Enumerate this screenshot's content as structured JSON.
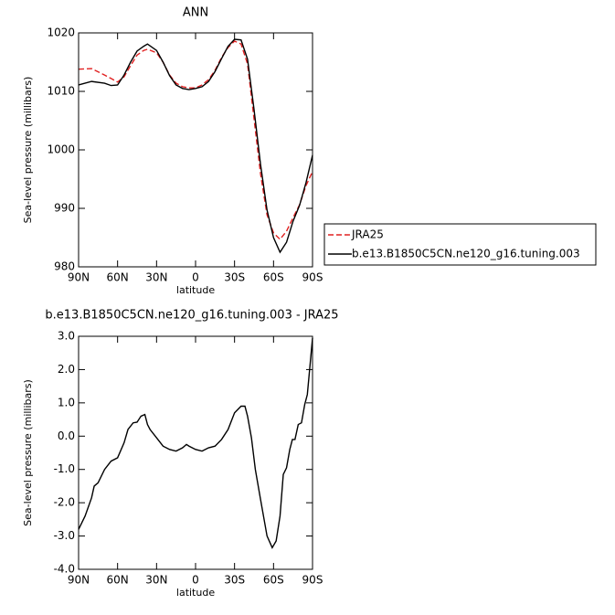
{
  "chart_data": [
    {
      "type": "line",
      "title": "ANN",
      "xlabel": "latitude",
      "ylabel": "Sea-level pressure (millibars)",
      "xlim": [
        90,
        -90
      ],
      "xticks": [
        {
          "value": 90,
          "label": "90N"
        },
        {
          "value": 60,
          "label": "60N"
        },
        {
          "value": 30,
          "label": "30N"
        },
        0,
        {
          "value": -30,
          "label": "30S"
        },
        {
          "value": -60,
          "label": "60S"
        },
        {
          "value": -90,
          "label": "90S"
        }
      ],
      "ylim": [
        980,
        1020
      ],
      "yticks": [
        980,
        990,
        1000,
        1010,
        1020
      ],
      "x": [
        90,
        80,
        70,
        65,
        60,
        55,
        50,
        45,
        40,
        37,
        30,
        25,
        20,
        15,
        10,
        5,
        0,
        -5,
        -10,
        -15,
        -20,
        -25,
        -30,
        -35,
        -40,
        -45,
        -50,
        -55,
        -60,
        -65,
        -70,
        -75,
        -80,
        -85,
        -90
      ],
      "legend_position": "right",
      "series": [
        {
          "name": "JRA25",
          "color": "#e02020",
          "line_style": "dashed",
          "values": [
            1013.8,
            1013.9,
            1012.8,
            1012.2,
            1011.6,
            1012.5,
            1014.4,
            1016.2,
            1017,
            1017.2,
            1016.6,
            1015,
            1012.8,
            1011.4,
            1010.8,
            1010.6,
            1010.6,
            1011.1,
            1012,
            1013.6,
            1015.8,
            1017.5,
            1018.6,
            1018.1,
            1014.7,
            1005.3,
            995.9,
            988.9,
            985.8,
            984.7,
            986.1,
            988.4,
            990.6,
            993.9,
            996.3
          ]
        },
        {
          "name": "b.e13.B1850C5CN.ne120_g16.tuning.003",
          "color": "#000000",
          "line_style": "solid",
          "values": [
            1011.1,
            1011.7,
            1011.4,
            1011,
            1011.1,
            1012.8,
            1015,
            1016.9,
            1017.7,
            1018.1,
            1017,
            1015,
            1012.7,
            1011.1,
            1010.5,
            1010.3,
            1010.5,
            1010.8,
            1011.7,
            1013.4,
            1015.6,
            1017.7,
            1018.9,
            1018.8,
            1015.5,
            1006.9,
            997.5,
            989.7,
            985,
            982.5,
            984.2,
            987.8,
            990.5,
            994.4,
            999.1
          ]
        }
      ]
    },
    {
      "type": "line",
      "title": "b.e13.B1850C5CN.ne120_g16.tuning.003 - JRA25",
      "xlabel": "latitude",
      "ylabel": "Sea-level pressure (millibars)",
      "xlim": [
        90,
        -90
      ],
      "xticks": [
        {
          "value": 90,
          "label": "90N"
        },
        {
          "value": 60,
          "label": "60N"
        },
        {
          "value": 30,
          "label": "30N"
        },
        0,
        {
          "value": -30,
          "label": "30S"
        },
        {
          "value": -60,
          "label": "60S"
        },
        {
          "value": -90,
          "label": "90S"
        }
      ],
      "ylim": [
        -4,
        3
      ],
      "yticks": [
        {
          "value": -4,
          "label": "-4.0"
        },
        {
          "value": -3,
          "label": "-3.0"
        },
        {
          "value": -2,
          "label": "-2.0"
        },
        {
          "value": -1,
          "label": "-1.0"
        },
        {
          "value": 0,
          "label": "0.0"
        },
        {
          "value": 1,
          "label": "1.0"
        },
        {
          "value": 2,
          "label": "2.0"
        },
        {
          "value": 3,
          "label": "3.0"
        }
      ],
      "x": [
        90,
        85,
        80,
        78,
        75,
        70,
        65,
        60,
        55,
        52,
        48,
        45,
        42,
        39,
        37,
        35,
        30,
        25,
        20,
        15,
        10,
        7,
        5,
        0,
        -5,
        -10,
        -15,
        -20,
        -25,
        -30,
        -35,
        -38,
        -40,
        -43,
        -46,
        -50,
        -55,
        -59,
        -62,
        -65,
        -67.5,
        -70,
        -72.5,
        -74.5,
        -76.5,
        -79,
        -81.5,
        -84,
        -86,
        -88,
        -90
      ],
      "series": [
        {
          "color": "#000000",
          "line_style": "solid",
          "values": [
            -2.8,
            -2.4,
            -1.85,
            -1.5,
            -1.4,
            -1.0,
            -0.75,
            -0.65,
            -0.2,
            0.2,
            0.4,
            0.42,
            0.6,
            0.65,
            0.35,
            0.2,
            -0.05,
            -0.3,
            -0.4,
            -0.45,
            -0.35,
            -0.25,
            -0.3,
            -0.4,
            -0.45,
            -0.35,
            -0.3,
            -0.1,
            0.2,
            0.7,
            0.9,
            0.9,
            0.6,
            -0.05,
            -1.0,
            -1.9,
            -3.0,
            -3.35,
            -3.15,
            -2.4,
            -1.15,
            -0.95,
            -0.4,
            -0.1,
            -0.1,
            0.35,
            0.4,
            0.95,
            1.25,
            2.1,
            2.95
          ]
        }
      ]
    }
  ]
}
